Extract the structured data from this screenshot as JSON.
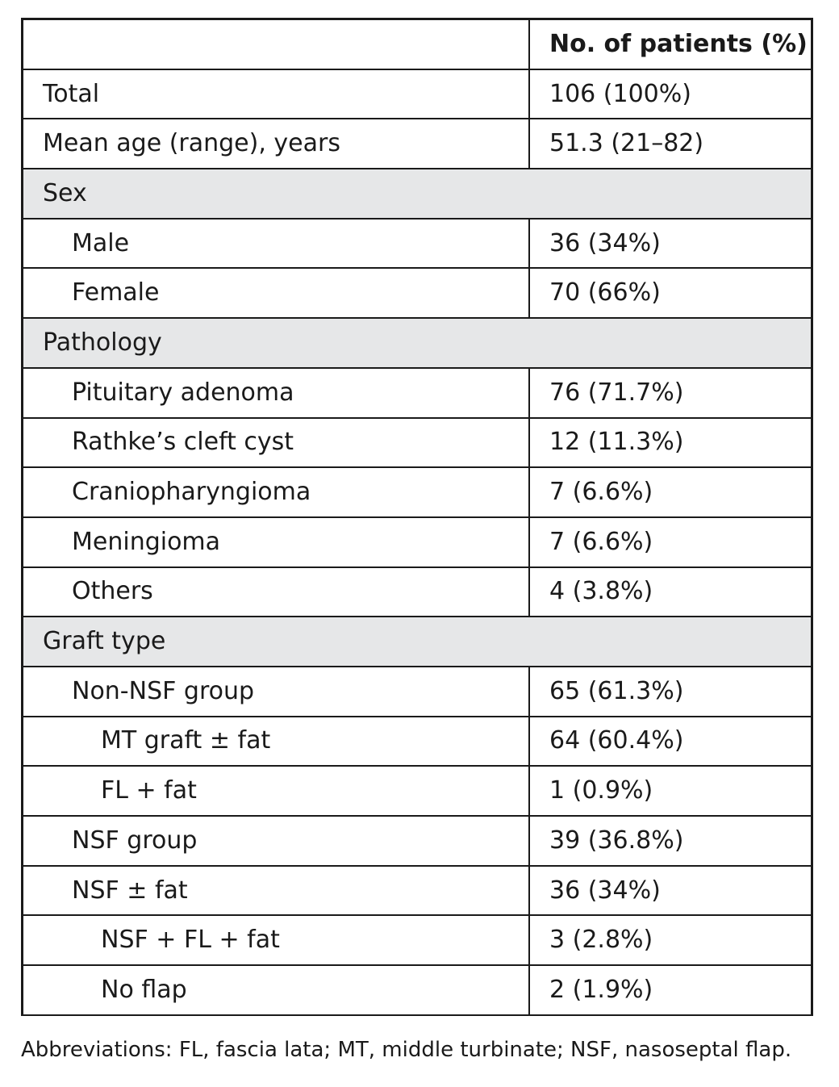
{
  "table": {
    "header": {
      "label": "",
      "value": "No. of patients (%)"
    },
    "rows": [
      {
        "label": "Total",
        "value": "106 (100%)"
      },
      {
        "label": "Mean age (range), years",
        "value": "51.3 (21–82)"
      },
      {
        "label": "Sex",
        "value": null,
        "section": true
      },
      {
        "label": "Male",
        "value": "36 (34%)"
      },
      {
        "label": "Female",
        "value": "70 (66%)"
      },
      {
        "label": "Pathology",
        "value": null,
        "section": true
      },
      {
        "label": "Pituitary adenoma",
        "value": "76 (71.7%)"
      },
      {
        "label": "Rathke’s cleft cyst",
        "value": "12 (11.3%)"
      },
      {
        "label": "Craniopharyngioma",
        "value": "7 (6.6%)"
      },
      {
        "label": "Meningioma",
        "value": "7 (6.6%)"
      },
      {
        "label": "Others",
        "value": "4 (3.8%)"
      },
      {
        "label": "Graft type",
        "value": null,
        "section": true
      },
      {
        "label": "Non-NSF group",
        "value": "65 (61.3%)"
      },
      {
        "label": "MT graft ± fat",
        "value": "64 (60.4%)"
      },
      {
        "label": "FL + fat",
        "value": "1 (0.9%)"
      },
      {
        "label": "NSF group",
        "value": "39 (36.8%)"
      },
      {
        "label": "NSF ± fat",
        "value": "36 (34%)"
      },
      {
        "label": "NSF + FL + fat",
        "value": "3 (2.8%)"
      },
      {
        "label": "No flap",
        "value": "2 (1.9%)"
      }
    ]
  },
  "footnote": "Abbreviations: FL, fascia lata; MT, middle turbinate; NSF, nasoseptal flap."
}
